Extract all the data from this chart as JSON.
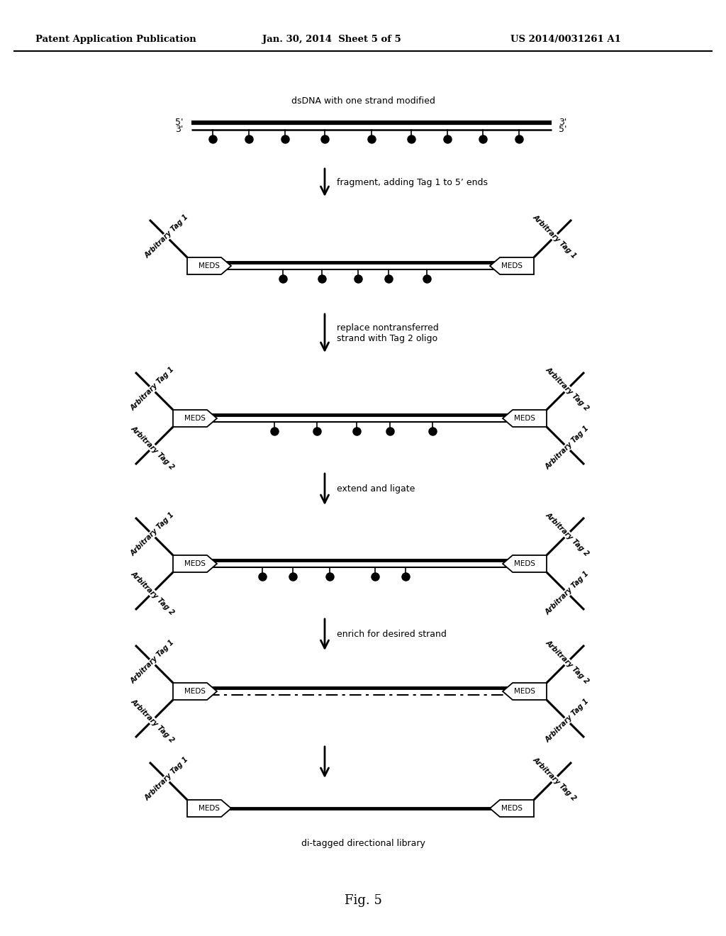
{
  "bg_color": "#ffffff",
  "header_left": "Patent Application Publication",
  "header_mid": "Jan. 30, 2014  Sheet 5 of 5",
  "header_right": "US 2014/0031261 A1",
  "fig_label": "Fig. 5",
  "step0_label": "dsDNA with one strand modified",
  "arrow1_label": "fragment, adding Tag 1 to 5’ ends",
  "arrow2_label": "replace nontransferred\nstrand with Tag 2 oligo",
  "arrow3_label": "extend and ligate",
  "arrow4_label": "enrich for desired strand",
  "final_label": "di-tagged directional library",
  "tag1": "Arbitrary Tag 1",
  "tag2": "Arbitrary Tag 2",
  "meds": "MEDS"
}
